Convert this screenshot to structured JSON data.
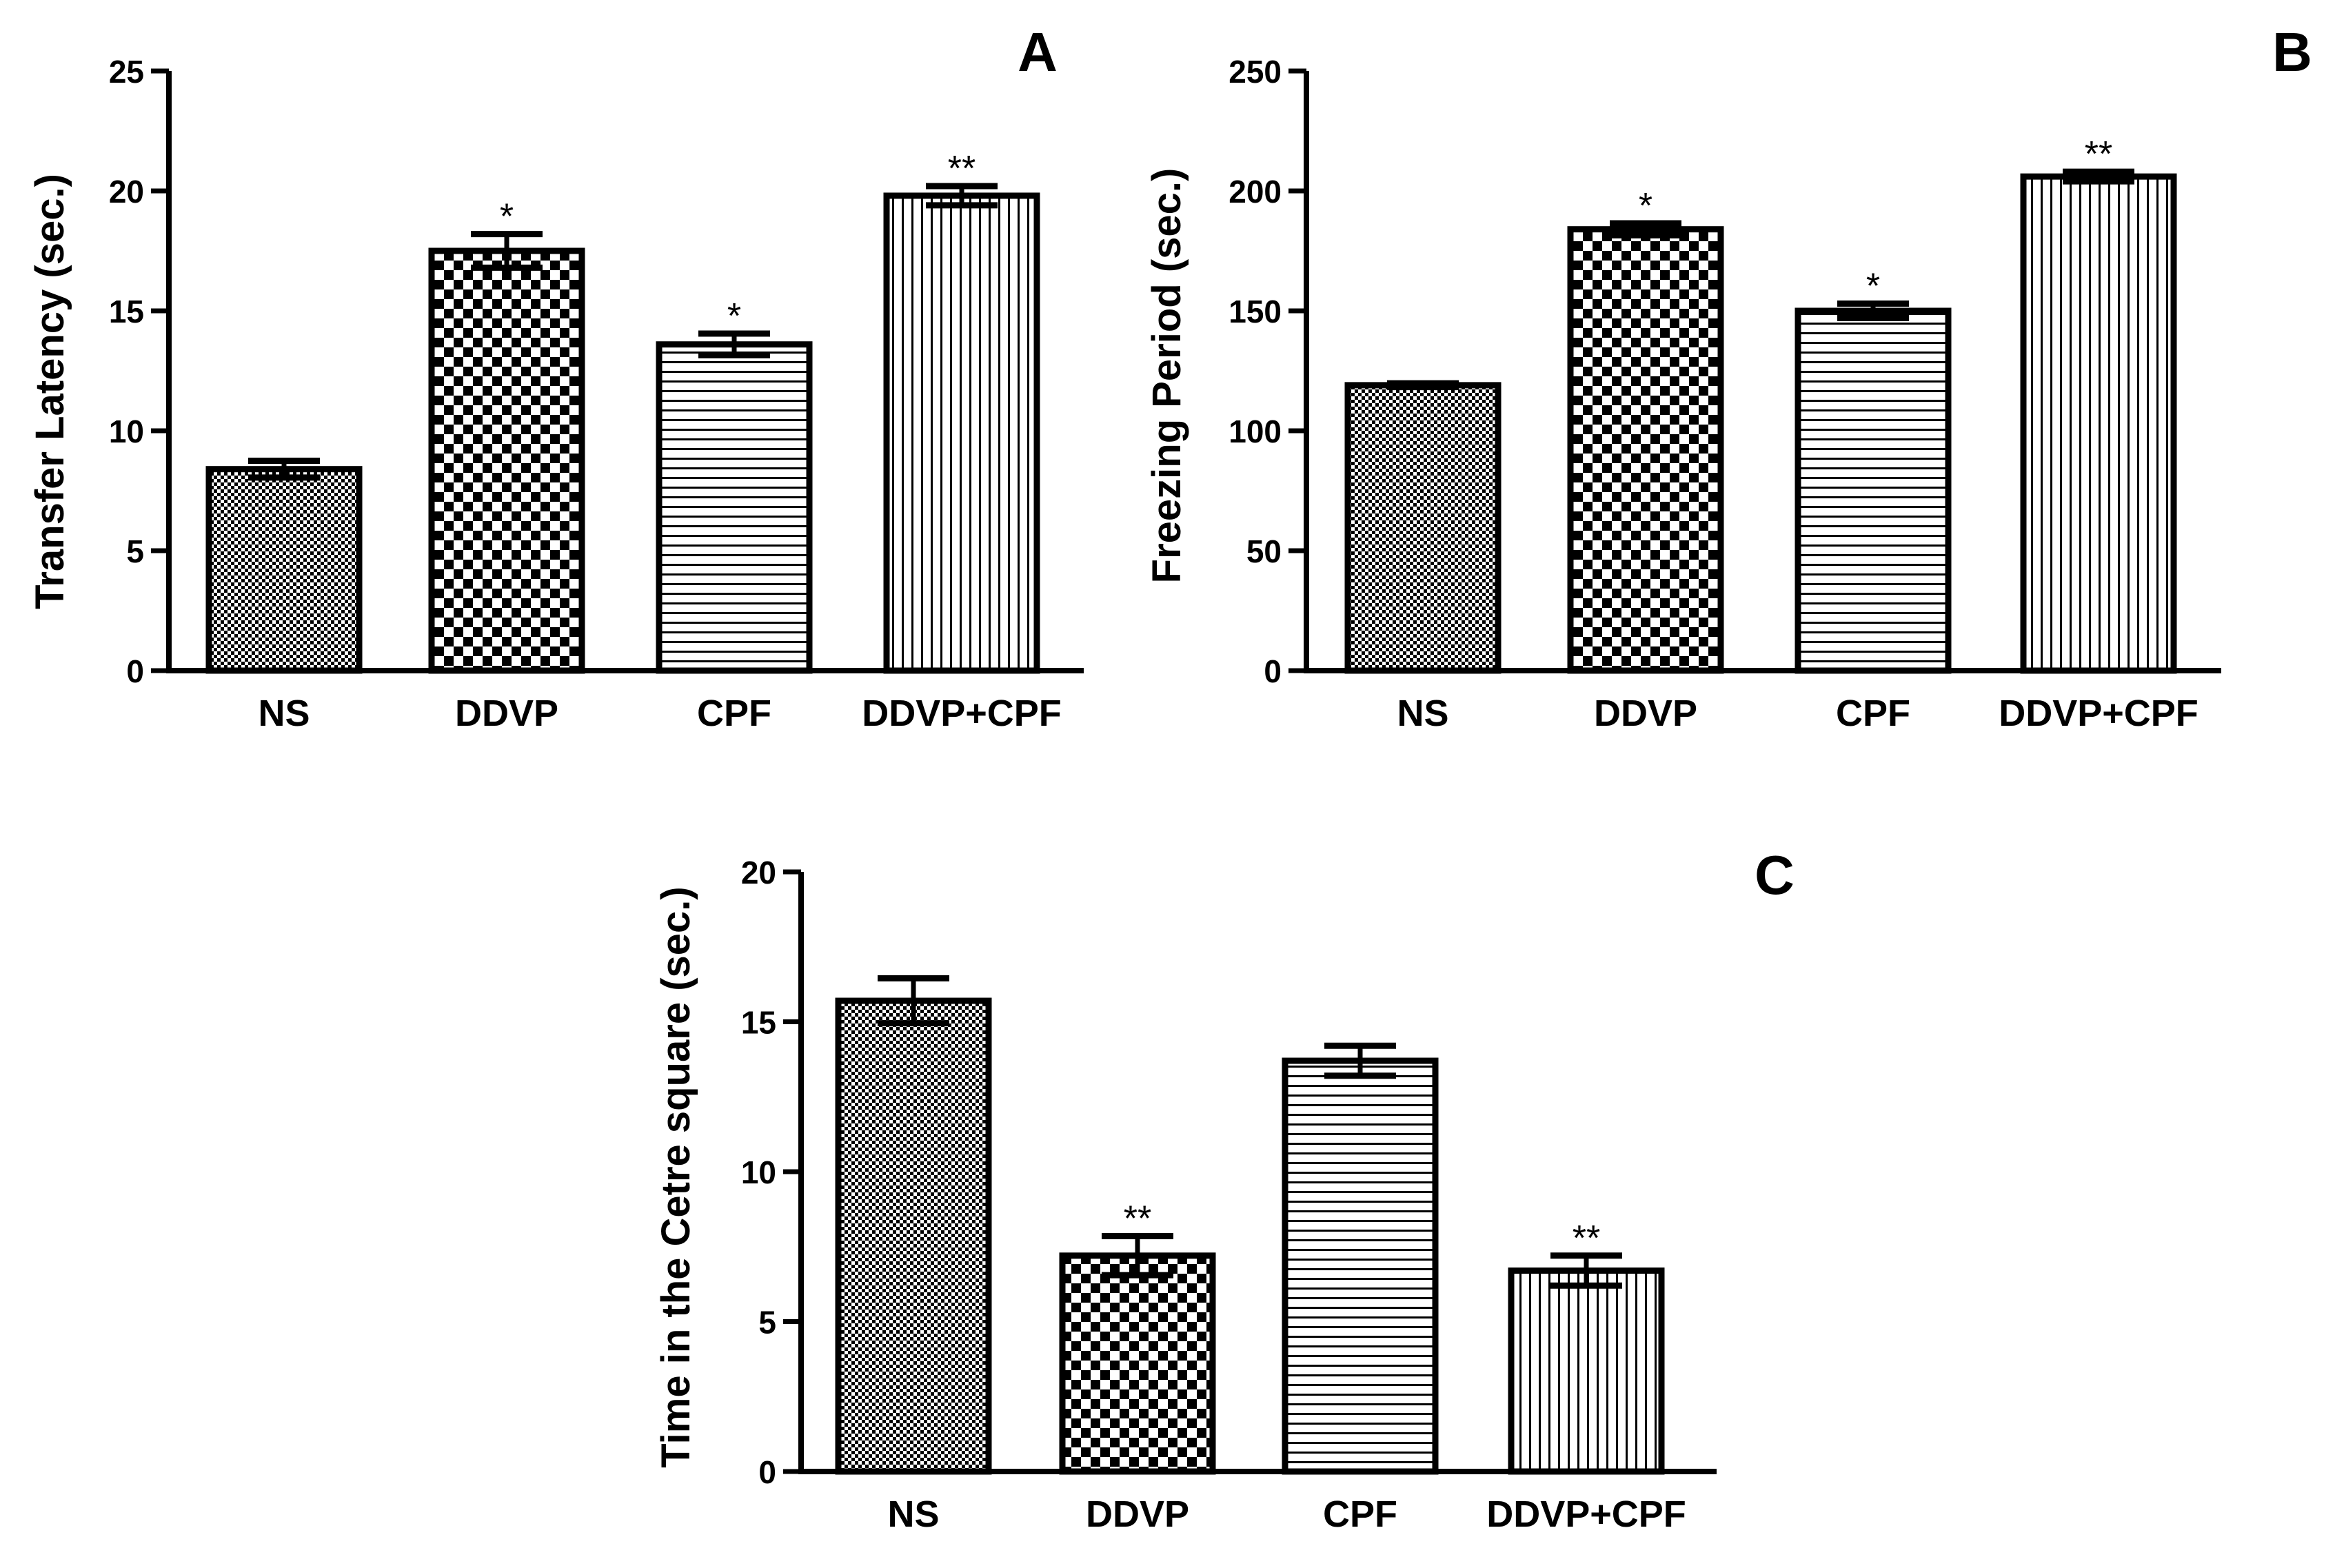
{
  "figure": {
    "style": {
      "bar_stroke": "#000000",
      "axis_color": "#000000",
      "background": "#ffffff"
    },
    "pattern_names": [
      "fine-checker-pattern",
      "coarse-checker-pattern",
      "horizontal-lines-pattern",
      "vertical-lines-pattern"
    ]
  },
  "chart_data": [
    {
      "panel": "A",
      "type": "bar",
      "categories": [
        "NS",
        "DDVP",
        "CPF",
        "DDVP+CPF"
      ],
      "values": [
        8.4,
        17.5,
        13.6,
        19.8
      ],
      "errors": [
        0.35,
        0.7,
        0.45,
        0.4
      ],
      "significance": [
        "",
        "*",
        "*",
        "**"
      ],
      "ylabel": "Transfer Latency (sec.)",
      "ylim": [
        0,
        25
      ],
      "yticks": [
        0,
        5,
        10,
        15,
        20,
        25
      ],
      "ytick_labels": [
        "0",
        "5",
        "10",
        "15",
        "20",
        "25"
      ]
    },
    {
      "panel": "B",
      "type": "bar",
      "categories": [
        "NS",
        "DDVP",
        "CPF",
        "DDVP+CPF"
      ],
      "values": [
        119,
        184,
        150,
        206
      ],
      "errors": [
        0.8,
        2.5,
        3,
        2
      ],
      "significance": [
        "",
        "*",
        "*",
        "**"
      ],
      "ylabel": "Freezing Period (sec.)",
      "ylim": [
        0,
        250
      ],
      "yticks": [
        0,
        50,
        100,
        150,
        200,
        250
      ],
      "ytick_labels": [
        "0",
        "50",
        "100",
        "150",
        "200",
        "250"
      ]
    },
    {
      "panel": "C",
      "type": "bar",
      "categories": [
        "NS",
        "DDVP",
        "CPF",
        "DDVP+CPF"
      ],
      "values": [
        15.7,
        7.2,
        13.7,
        6.7
      ],
      "errors": [
        0.75,
        0.65,
        0.5,
        0.5
      ],
      "significance": [
        "",
        "**",
        "",
        "**"
      ],
      "ylabel": "Time in the Cetre square (sec.)",
      "ylim": [
        0,
        20
      ],
      "yticks": [
        0,
        5,
        10,
        15,
        20
      ],
      "ytick_labels": [
        "0",
        "5",
        "10",
        "15",
        "20"
      ]
    }
  ]
}
